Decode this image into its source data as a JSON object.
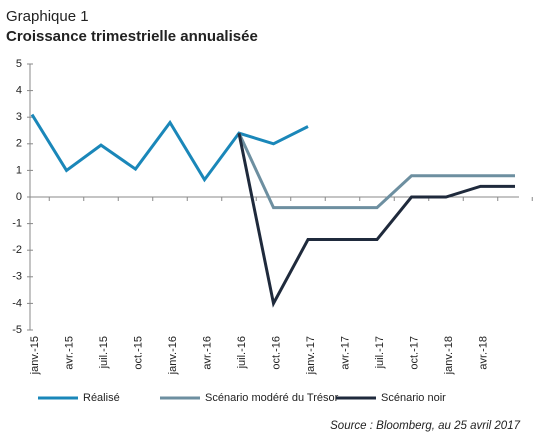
{
  "chart_data": {
    "type": "line",
    "title": "Graphique 1",
    "subtitle": "Croissance trimestrielle annualisée",
    "source": "Source : Bloomberg, au 25 avril 2017",
    "categories": [
      "janv.-15",
      "avr.-15",
      "juil.-15",
      "oct.-15",
      "janv.-16",
      "avr.-16",
      "juil.-16",
      "oct.-16",
      "janv.-17",
      "avr.-17",
      "juil.-17",
      "oct.-17",
      "janv.-18",
      "avr.-18",
      null
    ],
    "series": [
      {
        "name": "Réalisé",
        "color": "#1a87b9",
        "values": [
          3.1,
          1.0,
          1.95,
          1.05,
          2.8,
          0.65,
          2.4,
          2.0,
          2.65,
          null,
          null,
          null,
          null,
          null,
          null
        ]
      },
      {
        "name": "Scénario modéré du Trésor",
        "color": "#6d8fa0",
        "values": [
          null,
          null,
          null,
          null,
          null,
          null,
          2.4,
          -0.4,
          -0.4,
          -0.4,
          -0.4,
          0.8,
          0.8,
          0.8,
          0.8
        ]
      },
      {
        "name": "Scénario noir",
        "color": "#1f2a3c",
        "values": [
          null,
          null,
          null,
          null,
          null,
          null,
          2.4,
          -4,
          -1.6,
          -1.6,
          -1.6,
          0,
          0,
          0.4,
          0.4
        ]
      }
    ],
    "ylim": [
      -5,
      5
    ],
    "yticks": [
      -5,
      -4,
      -3,
      -2,
      -1,
      0,
      1,
      2,
      3,
      4,
      5
    ]
  }
}
